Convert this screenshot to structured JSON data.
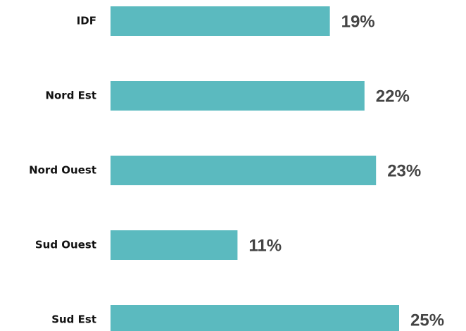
{
  "chart_data": {
    "type": "bar",
    "orientation": "horizontal",
    "categories": [
      "IDF",
      "Nord Est",
      "Nord Ouest",
      "Sud Ouest",
      "Sud Est"
    ],
    "values": [
      19,
      22,
      23,
      11,
      25
    ],
    "value_labels": [
      "19%",
      "22%",
      "23%",
      "11%",
      "25%"
    ],
    "color": "#5bbabf"
  }
}
